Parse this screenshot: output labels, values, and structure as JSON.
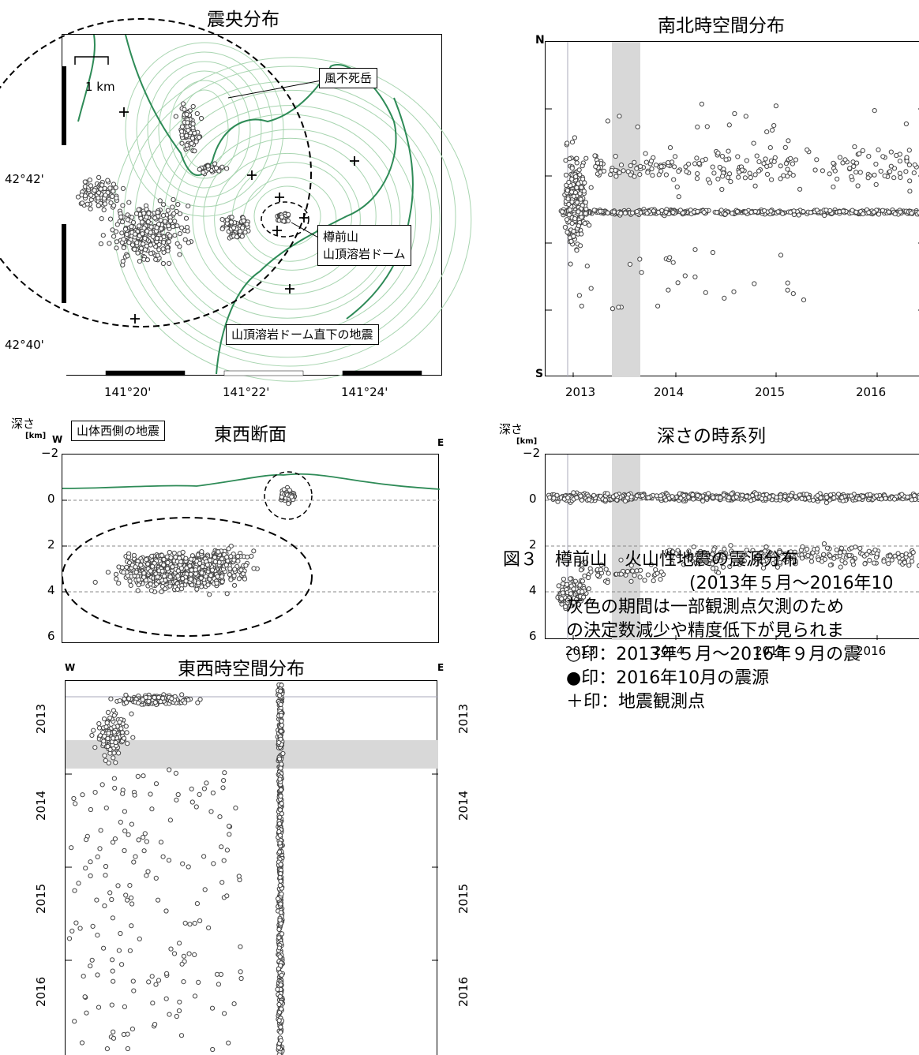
{
  "panels": {
    "epicenter": {
      "title": "震央分布",
      "scale_label": "1 km",
      "y_ticks": [
        "42°42'",
        "42°40'"
      ],
      "x_ticks": [
        "141°20'",
        "141°22'",
        "141°24'"
      ],
      "label_fufushi": "風不死岳",
      "label_dome_1": "樽前山",
      "label_dome_2": "山頂溶岩ドーム",
      "label_under_dome": "山頂溶岩ドーム直下の地震",
      "label_west": "山体西側の地震"
    },
    "ns_time": {
      "title": "南北時空間分布",
      "n_label": "N",
      "s_label": "S",
      "x_ticks": [
        "2013",
        "2014",
        "2015",
        "2016"
      ]
    },
    "ew_section": {
      "title": "東西断面",
      "y_label": "深さ",
      "y_unit": "[km]",
      "w_label": "W",
      "e_label": "E",
      "y_ticks": [
        "−2",
        "0",
        "2",
        "4",
        "6"
      ]
    },
    "depth_time": {
      "title": "深さの時系列",
      "y_label": "深さ",
      "y_unit": "[km]",
      "y_ticks": [
        "−2",
        "0",
        "2",
        "4",
        "6"
      ],
      "x_ticks": [
        "2013",
        "2014",
        "2015",
        "2016"
      ]
    },
    "ew_time": {
      "title": "東西時空間分布",
      "w_label": "W",
      "e_label": "E",
      "y_ticks": [
        "2013",
        "2014",
        "2015",
        "2016"
      ]
    }
  },
  "caption": {
    "line1": "図３　樽前山　火山性地震の震源分布",
    "line2": "(2013年５月～2016年10",
    "line3": "灰色の期間は一部観測点欠測のため",
    "line4": "の決定数減少や精度低下が見られま",
    "line5": "○印：2013年５月～2016年９月の震",
    "line6": "●印：2016年10月の震源",
    "line7": "＋印：地震観測点"
  },
  "colors": {
    "topography": "#2e8b57",
    "contour": "#a8d5b0",
    "gray_band": "#d8d8d8",
    "marker_edge": "#444444"
  },
  "chart_data": [
    {
      "type": "scatter",
      "title": "震央分布",
      "xlabel": "",
      "ylabel": "",
      "x_ticks": [
        "141°20'",
        "141°22'",
        "141°24'"
      ],
      "y_ticks": [
        "42°42'",
        "42°40'"
      ],
      "clusters": [
        {
          "name": "山体西側の地震",
          "center_lon": 141.345,
          "center_lat": 42.69
        },
        {
          "name": "山頂溶岩ドーム直下の地震",
          "center_lon": 141.378,
          "center_lat": 42.685
        }
      ]
    },
    {
      "type": "scatter",
      "title": "南北時空間分布",
      "x": [
        "2013",
        "2014",
        "2015",
        "2016"
      ],
      "ylabel_top": "N",
      "ylabel_bottom": "S",
      "gray_period": [
        "2013.4",
        "2013.7"
      ]
    },
    {
      "type": "scatter",
      "title": "東西断面",
      "ylabel": "深さ [km]",
      "ylim": [
        -2,
        6
      ],
      "y_ticks": [
        -2,
        0,
        2,
        4,
        6
      ],
      "clusters": [
        {
          "name": "山頂溶岩ドーム直下の地震",
          "depth_range": [
            -0.5,
            0.3
          ]
        },
        {
          "name": "山体西側の地震",
          "depth_range": [
            1.8,
            5.6
          ]
        }
      ]
    },
    {
      "type": "scatter",
      "title": "深さの時系列",
      "ylabel": "深さ [km]",
      "ylim": [
        -2,
        6
      ],
      "x_ticks": [
        "2013",
        "2014",
        "2015",
        "2016"
      ],
      "gray_period": [
        "2013.4",
        "2013.7"
      ]
    },
    {
      "type": "scatter",
      "title": "東西時空間分布",
      "y_ticks": [
        "2013",
        "2014",
        "2015",
        "2016"
      ],
      "gray_period": [
        "2013.4",
        "2013.7"
      ]
    }
  ]
}
